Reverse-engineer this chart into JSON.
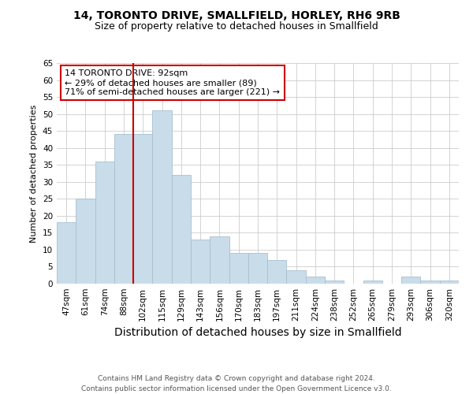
{
  "title": "14, TORONTO DRIVE, SMALLFIELD, HORLEY, RH6 9RB",
  "subtitle": "Size of property relative to detached houses in Smallfield",
  "xlabel": "Distribution of detached houses by size in Smallfield",
  "ylabel": "Number of detached properties",
  "categories": [
    "47sqm",
    "61sqm",
    "74sqm",
    "88sqm",
    "102sqm",
    "115sqm",
    "129sqm",
    "143sqm",
    "156sqm",
    "170sqm",
    "183sqm",
    "197sqm",
    "211sqm",
    "224sqm",
    "238sqm",
    "252sqm",
    "265sqm",
    "279sqm",
    "293sqm",
    "306sqm",
    "320sqm"
  ],
  "values": [
    18,
    25,
    36,
    44,
    44,
    51,
    32,
    13,
    14,
    9,
    9,
    7,
    4,
    2,
    1,
    0,
    1,
    0,
    2,
    1,
    1
  ],
  "bar_color": "#c9dcea",
  "bar_edgecolor": "#a8bfcf",
  "vline_x_index": 3.5,
  "vline_color": "#cc0000",
  "annotation_text": "14 TORONTO DRIVE: 92sqm\n← 29% of detached houses are smaller (89)\n71% of semi-detached houses are larger (221) →",
  "annotation_box_color": "#ffffff",
  "annotation_box_edgecolor": "#cc0000",
  "ylim": [
    0,
    65
  ],
  "yticks": [
    0,
    5,
    10,
    15,
    20,
    25,
    30,
    35,
    40,
    45,
    50,
    55,
    60,
    65
  ],
  "footer": "Contains HM Land Registry data © Crown copyright and database right 2024.\nContains public sector information licensed under the Open Government Licence v3.0.",
  "background_color": "#ffffff",
  "grid_color": "#cccccc",
  "title_fontsize": 10,
  "subtitle_fontsize": 9,
  "xlabel_fontsize": 10,
  "ylabel_fontsize": 8,
  "tick_fontsize": 7.5,
  "footer_fontsize": 6.5,
  "annotation_fontsize": 8
}
